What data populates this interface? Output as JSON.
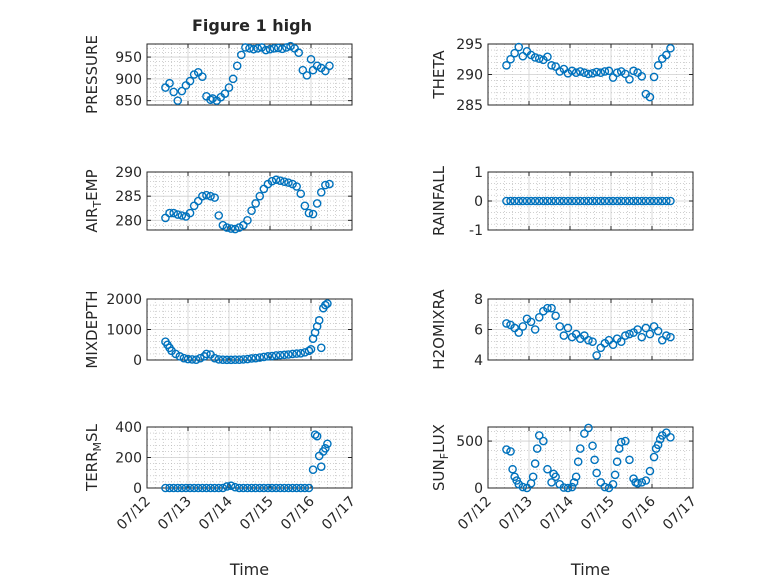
{
  "figure": {
    "title": "Figure 1 high",
    "background": "#ffffff"
  },
  "chart_data": [
    {
      "type": "scatter",
      "ylabel": "PRESSURE",
      "ylim": [
        840,
        980
      ],
      "yticks": [
        850,
        900,
        950
      ],
      "xlim": [
        12,
        17
      ],
      "xticks": [],
      "xticklabels": [],
      "xlabel": "",
      "grid": true,
      "color": "#0072BD",
      "series": [
        {
          "x": [
            12.45,
            12.55,
            12.65,
            12.75,
            12.85,
            12.95,
            13.05,
            13.15,
            13.25,
            13.35,
            13.45,
            13.55,
            13.6,
            13.7,
            13.8,
            13.9,
            14.0,
            14.1,
            14.2,
            14.3,
            14.4,
            14.5,
            14.6,
            14.7,
            14.8,
            14.9,
            15.0,
            15.1,
            15.2,
            15.3,
            15.4,
            15.5,
            15.6,
            15.7,
            15.8,
            15.9,
            16.0,
            16.05,
            16.15,
            16.25,
            16.35,
            16.45
          ],
          "y": [
            880,
            890,
            870,
            850,
            872,
            885,
            895,
            910,
            915,
            905,
            860,
            852,
            855,
            850,
            858,
            866,
            880,
            900,
            930,
            955,
            972,
            970,
            968,
            970,
            972,
            966,
            968,
            970,
            971,
            969,
            972,
            975,
            970,
            960,
            920,
            908,
            945,
            920,
            930,
            925,
            918,
            930
          ]
        }
      ]
    },
    {
      "type": "scatter",
      "ylabel": "THETA",
      "ylim": [
        285,
        295
      ],
      "yticks": [
        285,
        290,
        295
      ],
      "xlim": [
        12,
        17
      ],
      "xticks": [],
      "xticklabels": [],
      "xlabel": "",
      "grid": true,
      "color": "#0072BD",
      "series": [
        {
          "x": [
            12.45,
            12.55,
            12.65,
            12.75,
            12.85,
            12.95,
            13.05,
            13.15,
            13.25,
            13.35,
            13.45,
            13.55,
            13.65,
            13.75,
            13.85,
            13.95,
            14.05,
            14.15,
            14.25,
            14.35,
            14.45,
            14.55,
            14.65,
            14.75,
            14.85,
            14.95,
            15.05,
            15.15,
            15.25,
            15.35,
            15.45,
            15.55,
            15.65,
            15.75,
            15.85,
            15.95,
            16.05,
            16.15,
            16.25,
            16.35,
            16.45
          ],
          "y": [
            291.5,
            292.5,
            293.5,
            294.5,
            293,
            293.8,
            293.2,
            292.8,
            292.6,
            292.4,
            292.9,
            291.5,
            291.3,
            290.5,
            290.9,
            290.2,
            290.6,
            290.3,
            290.5,
            290.3,
            290.1,
            290.2,
            290.4,
            290.3,
            290.5,
            290.6,
            289.5,
            290.3,
            290.5,
            290.1,
            289.2,
            290.6,
            290.3,
            289.7,
            286.8,
            286.3,
            289.6,
            291.5,
            292.6,
            293.2,
            294.3
          ]
        }
      ]
    },
    {
      "type": "scatter",
      "ylabel": "AIR_TEMP",
      "ylim": [
        278,
        290
      ],
      "yticks": [
        280,
        285,
        290
      ],
      "xlim": [
        12,
        17
      ],
      "xticks": [],
      "xticklabels": [],
      "xlabel": "",
      "grid": true,
      "color": "#0072BD",
      "series": [
        {
          "x": [
            12.45,
            12.55,
            12.65,
            12.75,
            12.85,
            12.95,
            13.05,
            13.15,
            13.25,
            13.35,
            13.45,
            13.55,
            13.65,
            13.75,
            13.85,
            13.95,
            14.05,
            14.15,
            14.25,
            14.35,
            14.45,
            14.55,
            14.65,
            14.75,
            14.85,
            14.95,
            15.05,
            15.15,
            15.25,
            15.35,
            15.45,
            15.55,
            15.65,
            15.75,
            15.85,
            15.95,
            16.05,
            16.15,
            16.25,
            16.35,
            16.45
          ],
          "y": [
            280.5,
            281.5,
            281.5,
            281.2,
            281,
            280.8,
            281.5,
            283,
            284,
            285,
            285.2,
            285,
            284.7,
            281,
            279,
            278.5,
            278.3,
            278.2,
            278.5,
            279,
            280,
            282,
            283.5,
            285,
            286.5,
            287.5,
            288.1,
            288.4,
            288.2,
            288,
            287.8,
            287.5,
            287,
            285.5,
            283,
            281.5,
            281.3,
            283.5,
            285.8,
            287.3,
            287.5
          ]
        }
      ]
    },
    {
      "type": "scatter",
      "ylabel": "RAINFALL",
      "ylim": [
        -1,
        1
      ],
      "yticks": [
        -1,
        0,
        1
      ],
      "xlim": [
        12,
        17
      ],
      "xticks": [],
      "xticklabels": [],
      "xlabel": "",
      "grid": true,
      "color": "#0072BD",
      "series": [
        {
          "x": [
            12.45,
            12.55,
            12.65,
            12.75,
            12.85,
            12.95,
            13.05,
            13.15,
            13.25,
            13.35,
            13.45,
            13.55,
            13.65,
            13.75,
            13.85,
            13.95,
            14.05,
            14.15,
            14.25,
            14.35,
            14.45,
            14.55,
            14.65,
            14.75,
            14.85,
            14.95,
            15.05,
            15.15,
            15.25,
            15.35,
            15.45,
            15.55,
            15.65,
            15.75,
            15.85,
            15.95,
            16.05,
            16.15,
            16.25,
            16.35,
            16.45
          ],
          "y": [
            0,
            0,
            0,
            0,
            0,
            0,
            0,
            0,
            0,
            0,
            0,
            0,
            0,
            0,
            0,
            0,
            0,
            0,
            0,
            0,
            0,
            0,
            0,
            0,
            0,
            0,
            0,
            0,
            0,
            0,
            0,
            0,
            0,
            0,
            0,
            0,
            0,
            0,
            0,
            0,
            0
          ]
        }
      ]
    },
    {
      "type": "scatter",
      "ylabel": "MIXDEPTH",
      "ylim": [
        0,
        2000
      ],
      "yticks": [
        0,
        1000,
        2000
      ],
      "xlim": [
        12,
        17
      ],
      "xticks": [],
      "xticklabels": [],
      "xlabel": "",
      "grid": true,
      "color": "#0072BD",
      "series": [
        {
          "x": [
            12.45,
            12.5,
            12.55,
            12.6,
            12.7,
            12.8,
            12.9,
            13.0,
            13.1,
            13.2,
            13.3,
            13.4,
            13.45,
            13.55,
            13.65,
            13.75,
            13.85,
            13.95,
            14.05,
            14.15,
            14.25,
            14.35,
            14.45,
            14.55,
            14.65,
            14.75,
            14.85,
            14.95,
            15.05,
            15.15,
            15.25,
            15.35,
            15.45,
            15.55,
            15.65,
            15.75,
            15.85,
            15.95,
            16.0,
            16.05,
            16.1,
            16.15,
            16.2,
            16.25,
            16.3,
            16.35,
            16.4
          ],
          "y": [
            600,
            500,
            400,
            300,
            200,
            120,
            60,
            30,
            20,
            10,
            60,
            120,
            200,
            180,
            60,
            20,
            10,
            5,
            5,
            10,
            10,
            20,
            30,
            50,
            60,
            80,
            100,
            120,
            130,
            150,
            160,
            170,
            180,
            200,
            210,
            220,
            250,
            300,
            350,
            700,
            900,
            1100,
            1300,
            400,
            1700,
            1800,
            1850
          ]
        }
      ]
    },
    {
      "type": "scatter",
      "ylabel": "H2OMIXRA",
      "ylim": [
        4,
        8
      ],
      "yticks": [
        4,
        6,
        8
      ],
      "xlim": [
        12,
        17
      ],
      "xticks": [],
      "xticklabels": [],
      "xlabel": "",
      "grid": true,
      "color": "#0072BD",
      "series": [
        {
          "x": [
            12.45,
            12.55,
            12.65,
            12.75,
            12.85,
            12.95,
            13.05,
            13.15,
            13.25,
            13.35,
            13.45,
            13.55,
            13.65,
            13.75,
            13.85,
            13.95,
            14.05,
            14.15,
            14.25,
            14.35,
            14.45,
            14.55,
            14.65,
            14.75,
            14.85,
            14.95,
            15.05,
            15.15,
            15.25,
            15.35,
            15.45,
            15.55,
            15.65,
            15.75,
            15.85,
            15.95,
            16.05,
            16.15,
            16.25,
            16.35,
            16.45
          ],
          "y": [
            6.4,
            6.3,
            6.1,
            5.8,
            6.2,
            6.7,
            6.5,
            6.0,
            6.8,
            7.2,
            7.4,
            7.4,
            6.9,
            6.2,
            5.6,
            6.1,
            5.5,
            5.7,
            5.4,
            5.6,
            5.3,
            5.2,
            4.3,
            4.8,
            5.1,
            5.3,
            5.0,
            5.4,
            5.2,
            5.6,
            5.7,
            5.8,
            6.0,
            5.5,
            6.1,
            5.7,
            6.2,
            5.9,
            5.3,
            5.6,
            5.5
          ]
        }
      ]
    },
    {
      "type": "scatter",
      "ylabel": "TERR_MSL",
      "ylim": [
        0,
        400
      ],
      "yticks": [
        0,
        200,
        400
      ],
      "xlim": [
        12,
        17
      ],
      "xticks": [
        12,
        13,
        14,
        15,
        16,
        17
      ],
      "xticklabels": [
        "07/12",
        "07/13",
        "07/14",
        "07/15",
        "07/16",
        "07/17"
      ],
      "xlabel": "Time",
      "grid": true,
      "color": "#0072BD",
      "series": [
        {
          "x": [
            12.45,
            12.55,
            12.65,
            12.75,
            12.85,
            12.95,
            13.05,
            13.15,
            13.25,
            13.35,
            13.45,
            13.55,
            13.65,
            13.75,
            13.85,
            13.95,
            14.05,
            14.15,
            14.25,
            14.35,
            14.45,
            14.55,
            14.65,
            14.75,
            14.85,
            14.95,
            15.05,
            15.15,
            15.25,
            15.35,
            15.45,
            15.55,
            15.65,
            15.75,
            15.85,
            15.95,
            16.05,
            16.1,
            16.15,
            16.2,
            16.25,
            16.3,
            16.35,
            16.4
          ],
          "y": [
            0,
            0,
            0,
            0,
            0,
            0,
            0,
            0,
            0,
            0,
            0,
            0,
            0,
            0,
            0,
            10,
            15,
            5,
            0,
            0,
            0,
            0,
            0,
            0,
            0,
            0,
            0,
            0,
            0,
            0,
            0,
            0,
            0,
            0,
            0,
            0,
            120,
            350,
            340,
            210,
            140,
            240,
            260,
            290
          ]
        }
      ]
    },
    {
      "type": "scatter",
      "ylabel": "SUN_FLUX",
      "ylim": [
        0,
        650
      ],
      "yticks": [
        0,
        500
      ],
      "xlim": [
        12,
        17
      ],
      "xticks": [
        12,
        13,
        14,
        15,
        16,
        17
      ],
      "xticklabels": [
        "07/12",
        "07/13",
        "07/14",
        "07/15",
        "07/16",
        "07/17"
      ],
      "xlabel": "Time",
      "grid": true,
      "color": "#0072BD",
      "series": [
        {
          "x": [
            12.45,
            12.55,
            12.6,
            12.65,
            12.7,
            12.75,
            12.85,
            12.95,
            13.05,
            13.1,
            13.15,
            13.2,
            13.25,
            13.35,
            13.45,
            13.55,
            13.6,
            13.65,
            13.75,
            13.85,
            13.95,
            14.05,
            14.1,
            14.15,
            14.2,
            14.25,
            14.35,
            14.45,
            14.55,
            14.6,
            14.65,
            14.75,
            14.85,
            14.95,
            15.05,
            15.1,
            15.15,
            15.2,
            15.25,
            15.35,
            15.45,
            15.55,
            15.6,
            15.65,
            15.75,
            15.85,
            15.95,
            16.05,
            16.1,
            16.15,
            16.2,
            16.25,
            16.35,
            16.45
          ],
          "y": [
            410,
            390,
            200,
            120,
            80,
            40,
            10,
            0,
            50,
            120,
            260,
            420,
            560,
            500,
            200,
            60,
            150,
            120,
            40,
            5,
            0,
            10,
            60,
            120,
            280,
            420,
            580,
            640,
            450,
            300,
            160,
            60,
            10,
            0,
            40,
            140,
            280,
            420,
            490,
            500,
            300,
            100,
            60,
            50,
            60,
            80,
            180,
            330,
            420,
            460,
            520,
            560,
            590,
            540
          ]
        }
      ]
    }
  ]
}
